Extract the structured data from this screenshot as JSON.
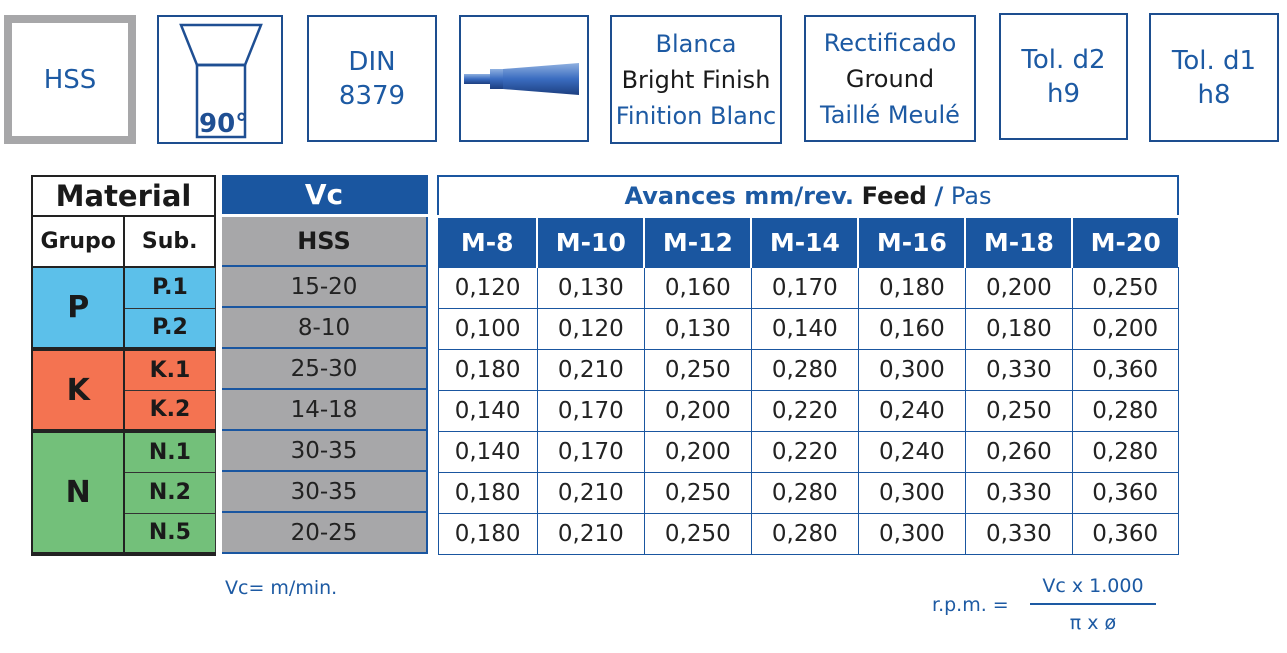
{
  "badges": {
    "material": "HSS",
    "angle": "90°",
    "standard": [
      "DIN",
      "8379"
    ],
    "finish": [
      "Blanca",
      "Bright Finish",
      "Finition Blanc"
    ],
    "grinding": [
      "Rectificado",
      "Ground",
      "Taillé Meulé"
    ],
    "tol_d2": [
      "Tol. d2",
      "h9"
    ],
    "tol_d1": [
      "Tol. d1",
      "h8"
    ]
  },
  "material_table": {
    "header": "Material",
    "col_group": "Grupo",
    "col_sub": "Sub.",
    "groups": [
      {
        "name": "P",
        "color": "#5cc0ea",
        "subs": [
          "P.1",
          "P.2"
        ]
      },
      {
        "name": "K",
        "color": "#f47351",
        "subs": [
          "K.1",
          "K.2"
        ]
      },
      {
        "name": "N",
        "color": "#73c07a",
        "subs": [
          "N.1",
          "N.2",
          "N.5"
        ]
      }
    ]
  },
  "vc_table": {
    "header": "Vc",
    "sub_header": "HSS",
    "values": [
      "15-20",
      "8-10",
      "25-30",
      "14-18",
      "30-35",
      "30-35",
      "20-25"
    ]
  },
  "feed_table": {
    "title_bold": "Avances mm/rev.",
    "title_dark": "Feed",
    "title_sep": "/",
    "title_light": "Pas",
    "columns": [
      "M-8",
      "M-10",
      "M-12",
      "M-14",
      "M-16",
      "M-18",
      "M-20"
    ],
    "rows": [
      [
        "0,120",
        "0,130",
        "0,160",
        "0,170",
        "0,180",
        "0,200",
        "0,250"
      ],
      [
        "0,100",
        "0,120",
        "0,130",
        "0,140",
        "0,160",
        "0,180",
        "0,200"
      ],
      [
        "0,180",
        "0,210",
        "0,250",
        "0,280",
        "0,300",
        "0,330",
        "0,360"
      ],
      [
        "0,140",
        "0,170",
        "0,200",
        "0,220",
        "0,240",
        "0,250",
        "0,280"
      ],
      [
        "0,140",
        "0,170",
        "0,200",
        "0,220",
        "0,240",
        "0,260",
        "0,280"
      ],
      [
        "0,180",
        "0,210",
        "0,250",
        "0,280",
        "0,300",
        "0,330",
        "0,360"
      ],
      [
        "0,180",
        "0,210",
        "0,250",
        "0,280",
        "0,300",
        "0,330",
        "0,360"
      ]
    ]
  },
  "notes": {
    "vc_unit": "Vc= m/min.",
    "rpm_label": "r.p.m. =",
    "rpm_numerator": "Vc x 1.000",
    "rpm_denominator": "π x ø"
  },
  "colors": {
    "header_blue": "#1a56a0",
    "text_blue": "#1d5aa3",
    "grey": "#a7a7a9"
  }
}
